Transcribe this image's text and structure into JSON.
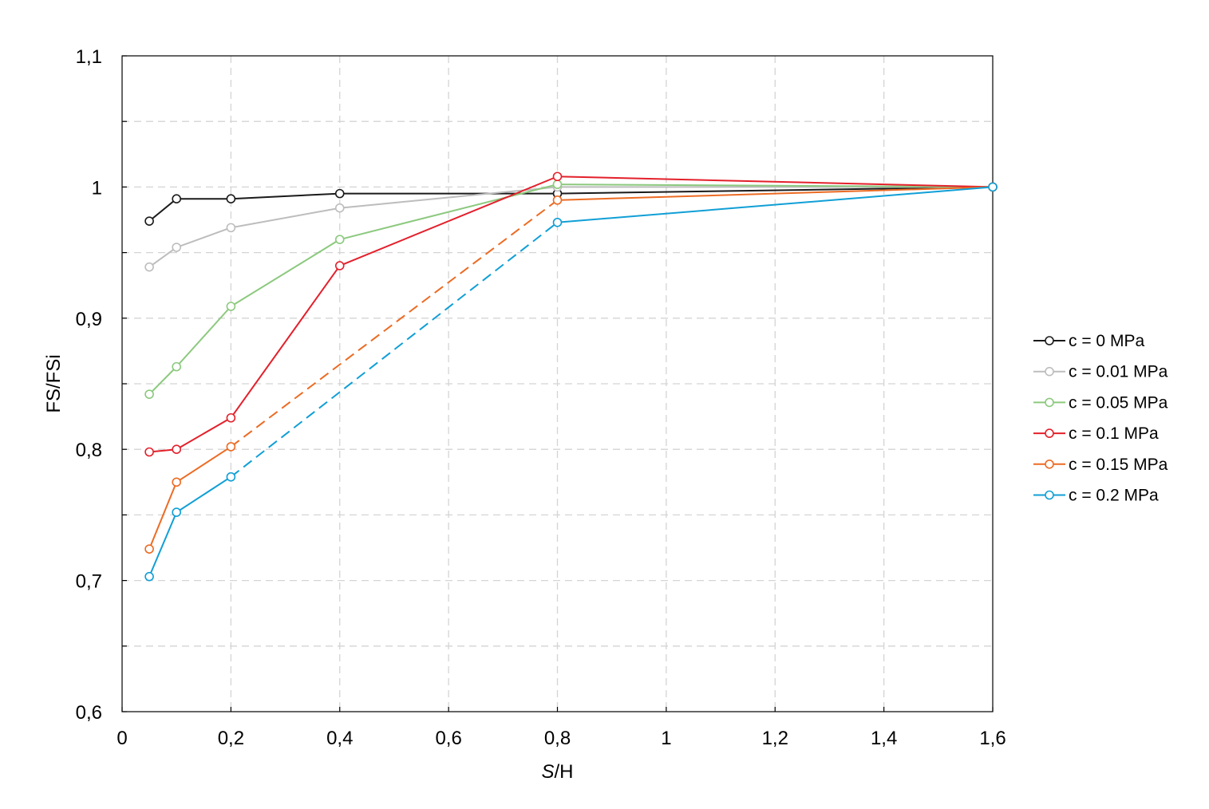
{
  "chart_data": {
    "type": "line",
    "xlabel_italic": "S",
    "xlabel_rest": "/H",
    "ylabel": "FS/FSi",
    "xlim": [
      0,
      1.6
    ],
    "ylim": [
      0.6,
      1.1
    ],
    "x_ticks": [
      0,
      0.2,
      0.4,
      0.6,
      0.8,
      1,
      1.2,
      1.4,
      1.6
    ],
    "x_tick_labels": [
      "0",
      "0,2",
      "0,4",
      "0,6",
      "0,8",
      "1",
      "1,2",
      "1,4",
      "1,6"
    ],
    "y_ticks": [
      0.6,
      0.7,
      0.8,
      0.9,
      1.0,
      1.1
    ],
    "y_tick_labels": [
      "0,6",
      "0,7",
      "0,8",
      "0,9",
      "1",
      "1,1"
    ],
    "y_minor_ticks": [
      0.65,
      0.75,
      0.85,
      0.95,
      1.05
    ],
    "grid": true,
    "legend_position": "right",
    "series": [
      {
        "name": "c = 0 MPa",
        "color": "#1a1a1a",
        "x": [
          0.05,
          0.1,
          0.2,
          0.4,
          0.8,
          1.6
        ],
        "y": [
          0.974,
          0.991,
          0.991,
          0.995,
          0.995,
          1.0
        ],
        "dashed_segments": []
      },
      {
        "name": "c = 0.01 MPa",
        "color": "#bdbdbd",
        "x": [
          0.05,
          0.1,
          0.2,
          0.4,
          0.8,
          1.6
        ],
        "y": [
          0.939,
          0.954,
          0.969,
          0.984,
          1.0,
          1.0
        ],
        "dashed_segments": []
      },
      {
        "name": "c = 0.05 MPa",
        "color": "#8cc97e",
        "x": [
          0.05,
          0.1,
          0.2,
          0.4,
          0.8,
          1.6
        ],
        "y": [
          0.842,
          0.863,
          0.909,
          0.96,
          1.002,
          1.0
        ],
        "dashed_segments": []
      },
      {
        "name": "c = 0.1 MPa",
        "color": "#e3202b",
        "x": [
          0.05,
          0.1,
          0.2,
          0.4,
          0.8,
          1.6
        ],
        "y": [
          0.798,
          0.8,
          0.824,
          0.94,
          1.008,
          1.0
        ],
        "dashed_segments": []
      },
      {
        "name": "c = 0.15 MPa",
        "color": "#ec6b23",
        "x": [
          0.05,
          0.1,
          0.2,
          0.8,
          1.6
        ],
        "y": [
          0.724,
          0.775,
          0.802,
          0.99,
          1.0
        ],
        "dashed_segments": [
          2
        ]
      },
      {
        "name": "c = 0.2 MPa",
        "color": "#109fd6",
        "x": [
          0.05,
          0.1,
          0.2,
          0.8,
          1.6
        ],
        "y": [
          0.703,
          0.752,
          0.779,
          0.973,
          1.0
        ],
        "dashed_segments": [
          2
        ]
      }
    ]
  }
}
